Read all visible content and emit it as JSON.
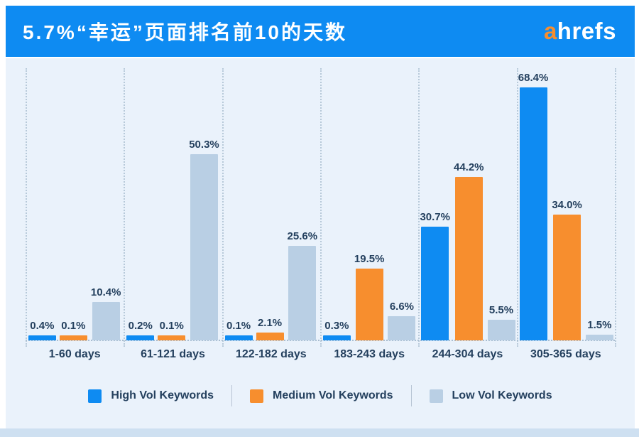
{
  "header": {
    "title": "5.7%“幸运”页面排名前10的天数",
    "logo": {
      "prefix": "a",
      "rest": "hrefs"
    }
  },
  "colors": {
    "header_bg": "#0E8BF2",
    "panel_bg": "#EAF2FB",
    "bottom_strip": "#CEE0F1",
    "text_navy": "#24405E",
    "grid_dotted": "#AFC2D4",
    "logo_a": "#F78E2E",
    "logo_rest": "#FFFFFF",
    "series_high": "#0E8BF2",
    "series_medium": "#F78E2E",
    "series_low": "#B9CFE4"
  },
  "chart_data": {
    "type": "bar",
    "title": "5.7%“幸运”页面排名前10的天数",
    "xlabel": "",
    "ylabel": "",
    "ylim": [
      0,
      75
    ],
    "grid": "dotted vertical separators between category groups, dotted baseline",
    "legend_position": "bottom",
    "value_label_format": "one decimal + %",
    "categories": [
      "1-60 days",
      "61-121 days",
      "122-182 days",
      "183-243 days",
      "244-304 days",
      "305-365 days"
    ],
    "series": [
      {
        "name": "High Vol Keywords",
        "color_key": "series_high",
        "values": [
          0.4,
          0.2,
          0.1,
          0.3,
          30.7,
          68.4
        ]
      },
      {
        "name": "Medium Vol Keywords",
        "color_key": "series_medium",
        "values": [
          0.1,
          0.1,
          2.1,
          19.5,
          44.2,
          34.0
        ]
      },
      {
        "name": "Low Vol Keywords",
        "color_key": "series_low",
        "values": [
          10.4,
          50.3,
          25.6,
          6.6,
          5.5,
          1.5
        ]
      }
    ]
  }
}
